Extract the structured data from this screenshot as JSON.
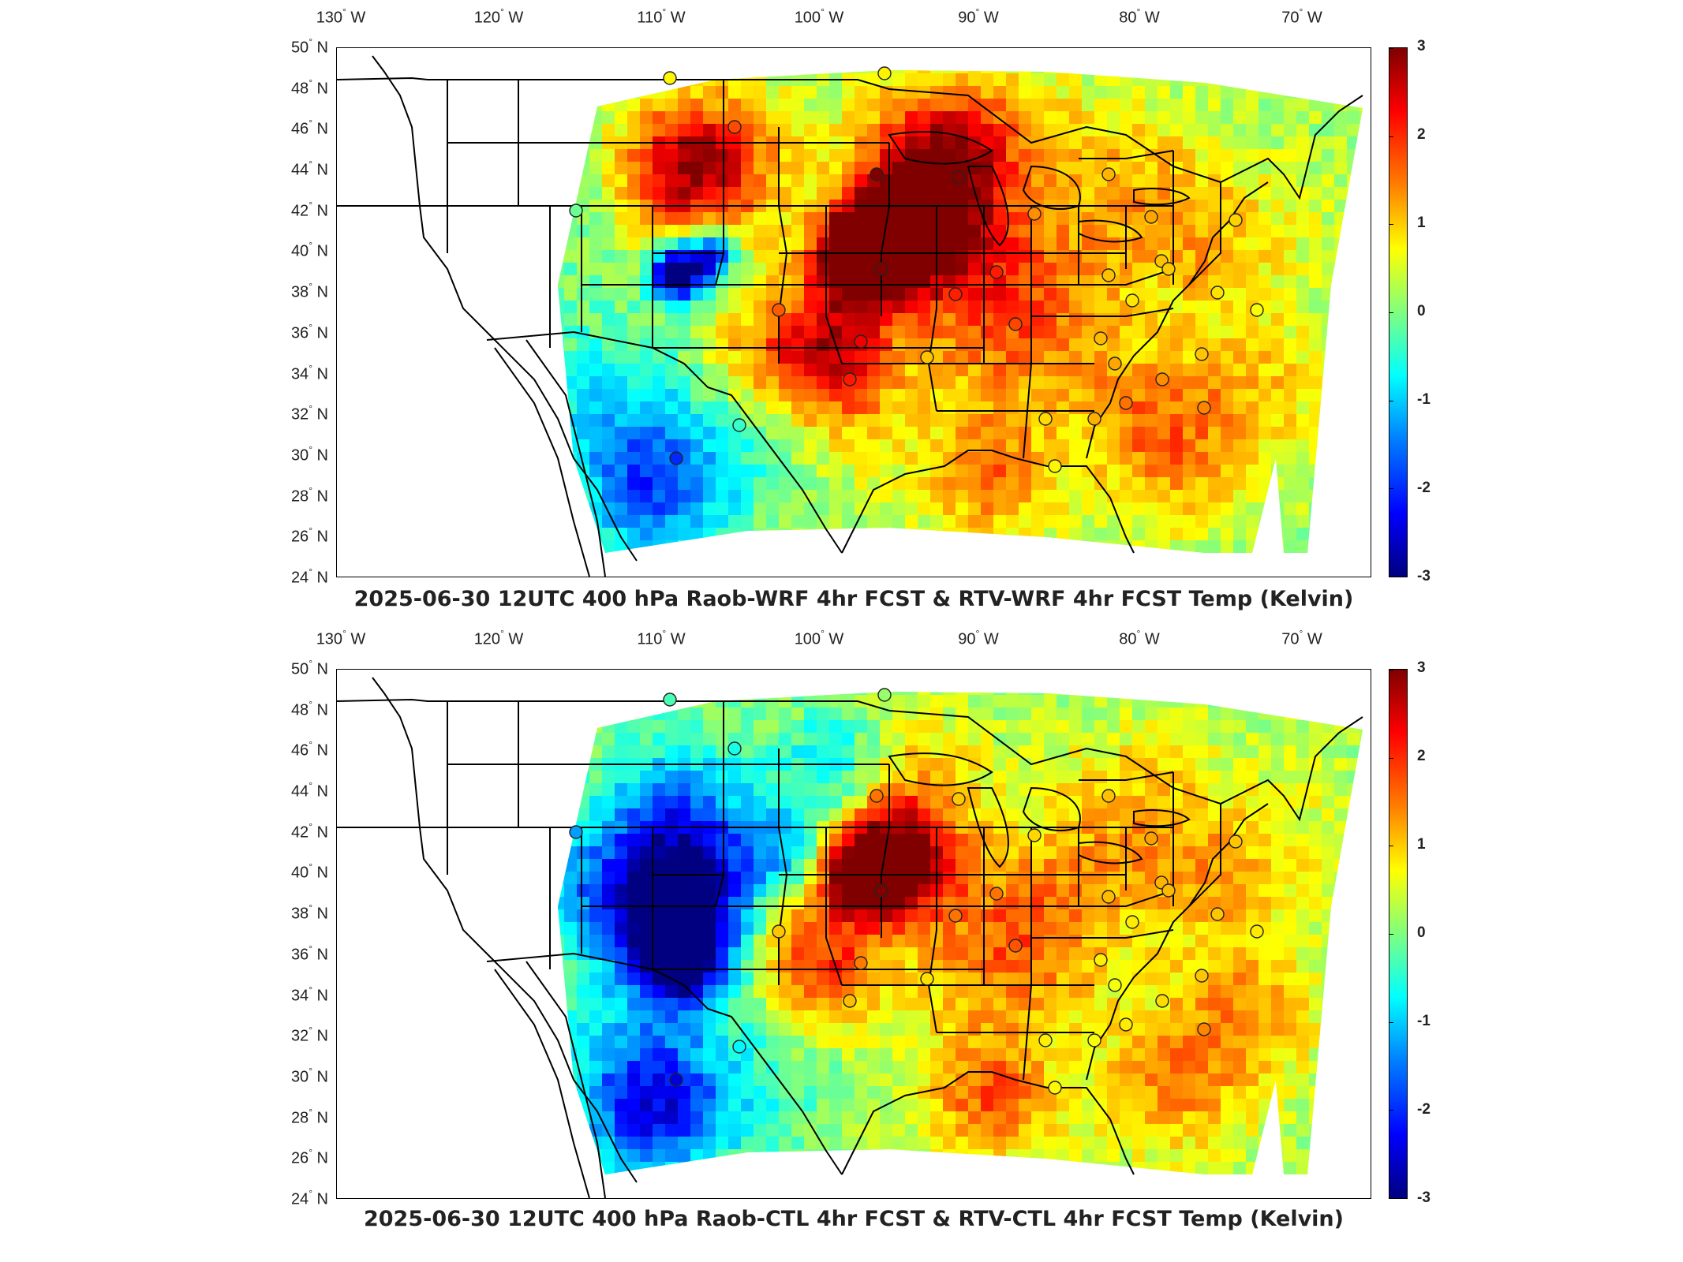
{
  "panels": [
    {
      "title": "2025-06-30 12UTC 400 hPa Raob-WRF 4hr FCST & RTV-WRF 4hr FCST Temp (Kelvin)"
    },
    {
      "title": "2025-06-30 12UTC 400 hPa Raob-CTL 4hr FCST & RTV-CTL 4hr FCST Temp (Kelvin)"
    }
  ],
  "lon_labels": [
    {
      "deg": "130",
      "hem": "W"
    },
    {
      "deg": "120",
      "hem": "W"
    },
    {
      "deg": "110",
      "hem": "W"
    },
    {
      "deg": "100",
      "hem": "W"
    },
    {
      "deg": "90",
      "hem": "W"
    },
    {
      "deg": "80",
      "hem": "W"
    },
    {
      "deg": "70",
      "hem": "W"
    }
  ],
  "lat_labels": [
    {
      "deg": "50",
      "hem": "N"
    },
    {
      "deg": "48",
      "hem": "N"
    },
    {
      "deg": "46",
      "hem": "N"
    },
    {
      "deg": "44",
      "hem": "N"
    },
    {
      "deg": "42",
      "hem": "N"
    },
    {
      "deg": "40",
      "hem": "N"
    },
    {
      "deg": "38",
      "hem": "N"
    },
    {
      "deg": "36",
      "hem": "N"
    },
    {
      "deg": "34",
      "hem": "N"
    },
    {
      "deg": "32",
      "hem": "N"
    },
    {
      "deg": "30",
      "hem": "N"
    },
    {
      "deg": "28",
      "hem": "N"
    },
    {
      "deg": "26",
      "hem": "N"
    },
    {
      "deg": "24",
      "hem": "N"
    }
  ],
  "colorbar": {
    "ticks": [
      "3",
      "2",
      "1",
      "0",
      "-1",
      "-2",
      "-3"
    ],
    "min": -3,
    "max": 3,
    "colormap": "jet"
  }
}
